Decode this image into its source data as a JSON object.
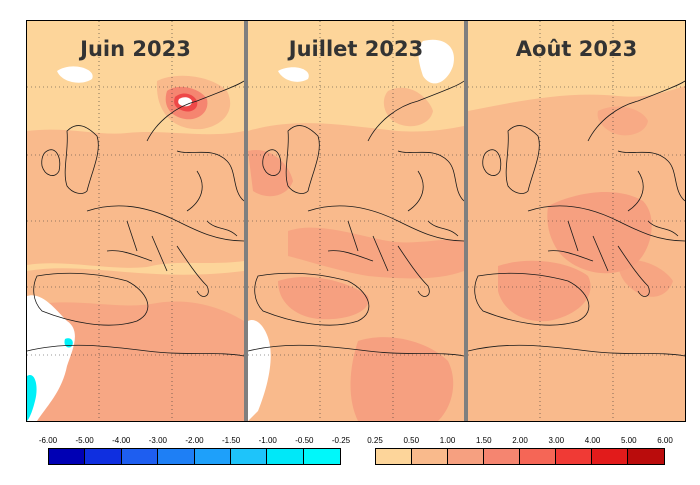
{
  "panels": [
    {
      "title": "Juin 2023"
    },
    {
      "title": "Juillet 2023"
    },
    {
      "title": "Août 2023"
    }
  ],
  "legend": {
    "negative": {
      "labels": [
        "-6.00",
        "-5.00",
        "-4.00",
        "-3.00",
        "-2.00",
        "-1.50",
        "-1.00",
        "-0.50",
        "-0.25"
      ],
      "colors": [
        "#0000b4",
        "#0f2fe0",
        "#1e5ef0",
        "#1e7ff5",
        "#1ea0fa",
        "#1ec4fa",
        "#00e8f8",
        "#00f8fa"
      ]
    },
    "positive": {
      "labels": [
        "0.25",
        "0.50",
        "1.00",
        "1.50",
        "2.00",
        "3.00",
        "4.00",
        "5.00",
        "6.00"
      ],
      "colors": [
        "#fdd59a",
        "#f9ba8c",
        "#f6a080",
        "#f58570",
        "#f56656",
        "#f03a35",
        "#e21b1b",
        "#ba0c0c"
      ]
    }
  },
  "palette": {
    "light": "#fdd59a",
    "mid": "#f9ba8c",
    "warm": "#f6a080",
    "hot": "#f58570",
    "peak": "#ee4848",
    "cold": "#00f0f8"
  }
}
